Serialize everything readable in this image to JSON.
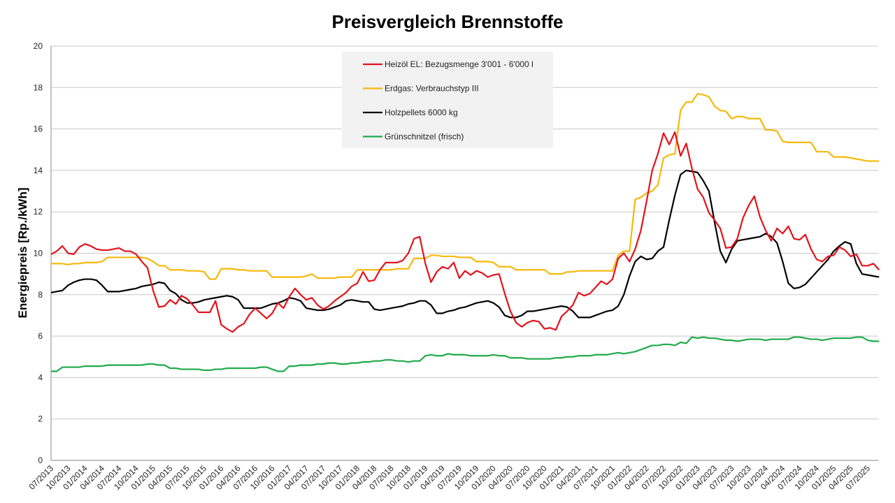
{
  "chart_data": {
    "type": "line",
    "title": "Preisvergleich Brennstoffe",
    "y_label": "Energiepreis [Rp./kWh]",
    "categories": [
      "07/2013",
      null,
      null,
      "10/2013",
      null,
      null,
      "01/2014",
      null,
      null,
      "04/2014",
      null,
      null,
      "07/2014",
      null,
      null,
      "10/2014",
      null,
      null,
      "01/2015",
      null,
      null,
      "04/2015",
      null,
      null,
      "07/2015",
      null,
      null,
      "10/2015",
      null,
      null,
      "01/2016",
      null,
      null,
      "04/2016",
      null,
      null,
      "07/2016",
      null,
      null,
      "10/2016",
      null,
      null,
      "01/2017",
      null,
      null,
      "04/2017",
      null,
      null,
      "07/2017",
      null,
      null,
      "10/2017",
      null,
      null,
      "01/2018",
      null,
      null,
      "04/2018",
      null,
      null,
      "07/2018",
      null,
      null,
      "10/2018",
      null,
      null,
      "01/2019",
      null,
      null,
      "04/2019",
      null,
      null,
      "07/2019",
      null,
      null,
      "10/2019",
      null,
      null,
      "01/2020",
      null,
      null,
      "04/2020",
      null,
      null,
      "07/2020",
      null,
      null,
      "10/2020",
      null,
      null,
      "01/2021",
      null,
      null,
      "04/2021",
      null,
      null,
      "07/2021",
      null,
      null,
      "10/2021",
      null,
      null,
      "01/2022",
      null,
      null,
      "04/2022",
      null,
      null,
      "07/2022",
      null,
      null,
      "10/2022",
      null,
      null,
      "01/2023",
      null,
      null,
      "04/2023",
      null,
      null,
      "07/2023",
      null,
      null,
      "10/2023",
      null,
      null,
      "01/2024",
      null,
      null,
      "04/2024",
      null,
      null,
      "07/2024",
      null,
      null,
      "10/2024",
      null,
      null,
      "01/2025",
      null,
      null,
      "04/2025",
      null,
      null,
      "07/2025",
      null,
      null
    ],
    "series": [
      {
        "name": "Heizöl EL: Bezugsmenge 3'001 - 6'000 l",
        "color": "#e3131b",
        "values": [
          9.95,
          10.1,
          10.35,
          10.0,
          9.95,
          10.3,
          10.45,
          10.35,
          10.2,
          10.15,
          10.15,
          10.2,
          10.25,
          10.1,
          10.1,
          9.95,
          9.6,
          9.3,
          8.2,
          7.4,
          7.45,
          7.75,
          7.55,
          7.95,
          7.8,
          7.5,
          7.15,
          7.15,
          7.15,
          7.7,
          6.55,
          6.35,
          6.2,
          6.45,
          6.6,
          7.05,
          7.35,
          7.1,
          6.85,
          7.1,
          7.6,
          7.35,
          7.9,
          8.3,
          8.0,
          7.75,
          7.85,
          7.5,
          7.3,
          7.45,
          7.7,
          7.9,
          8.1,
          8.4,
          8.55,
          9.1,
          8.65,
          8.7,
          9.2,
          9.55,
          9.55,
          9.55,
          9.65,
          10.0,
          10.7,
          10.8,
          9.5,
          8.6,
          9.1,
          9.35,
          9.25,
          9.55,
          8.8,
          9.15,
          8.95,
          9.15,
          9.05,
          8.85,
          8.95,
          9.0,
          8.05,
          7.2,
          6.65,
          6.45,
          6.65,
          6.75,
          6.7,
          6.35,
          6.4,
          6.3,
          6.95,
          7.2,
          7.5,
          8.1,
          7.95,
          8.05,
          8.35,
          8.65,
          8.5,
          8.75,
          9.75,
          10.0,
          9.6,
          10.2,
          11.1,
          12.5,
          14.0,
          14.8,
          15.8,
          15.25,
          15.85,
          14.7,
          15.3,
          14.1,
          13.1,
          12.7,
          11.95,
          11.6,
          11.2,
          10.25,
          10.3,
          10.7,
          11.7,
          12.3,
          12.75,
          11.75,
          11.1,
          10.6,
          11.2,
          10.95,
          11.3,
          10.7,
          10.65,
          10.9,
          10.2,
          9.7,
          9.6,
          9.85,
          9.9,
          10.3,
          10.15,
          9.85,
          9.95,
          9.4,
          9.4,
          9.5,
          9.2
        ]
      },
      {
        "name": "Erdgas: Verbrauchstyp III",
        "color": "#f5b90a",
        "values": [
          9.5,
          9.5,
          9.5,
          9.45,
          9.5,
          9.5,
          9.55,
          9.55,
          9.55,
          9.6,
          9.8,
          9.8,
          9.8,
          9.8,
          9.8,
          9.8,
          9.8,
          9.75,
          9.6,
          9.4,
          9.4,
          9.2,
          9.2,
          9.2,
          9.15,
          9.15,
          9.15,
          9.1,
          8.75,
          8.75,
          9.25,
          9.25,
          9.25,
          9.2,
          9.2,
          9.15,
          9.15,
          9.15,
          9.15,
          8.85,
          8.85,
          8.85,
          8.85,
          8.85,
          8.85,
          8.9,
          9.0,
          8.8,
          8.8,
          8.8,
          8.8,
          8.85,
          8.85,
          8.85,
          9.2,
          9.2,
          9.2,
          9.2,
          9.2,
          9.2,
          9.2,
          9.25,
          9.25,
          9.25,
          9.75,
          9.75,
          9.75,
          9.9,
          9.9,
          9.85,
          9.85,
          9.85,
          9.8,
          9.8,
          9.8,
          9.6,
          9.6,
          9.6,
          9.55,
          9.35,
          9.35,
          9.35,
          9.2,
          9.2,
          9.2,
          9.2,
          9.2,
          9.2,
          9.0,
          9.0,
          9.0,
          9.1,
          9.1,
          9.15,
          9.15,
          9.15,
          9.15,
          9.15,
          9.15,
          9.15,
          9.9,
          10.1,
          10.1,
          12.6,
          12.7,
          12.9,
          13.0,
          13.3,
          14.6,
          14.75,
          14.8,
          16.9,
          17.3,
          17.3,
          17.7,
          17.65,
          17.55,
          17.1,
          16.9,
          16.85,
          16.5,
          16.6,
          16.6,
          16.5,
          16.5,
          16.5,
          15.95,
          15.95,
          15.9,
          15.4,
          15.35,
          15.35,
          15.35,
          15.35,
          15.35,
          14.9,
          14.9,
          14.9,
          14.65,
          14.65,
          14.65,
          14.6,
          14.55,
          14.5,
          14.45,
          14.45,
          14.45
        ]
      },
      {
        "name": "Holzpellets 6000 kg",
        "color": "#000000",
        "values": [
          8.1,
          8.15,
          8.2,
          8.45,
          8.6,
          8.7,
          8.75,
          8.75,
          8.7,
          8.45,
          8.15,
          8.15,
          8.15,
          8.2,
          8.25,
          8.3,
          8.4,
          8.45,
          8.5,
          8.6,
          8.55,
          8.2,
          8.05,
          7.75,
          7.6,
          7.6,
          7.65,
          7.75,
          7.8,
          7.85,
          7.9,
          7.95,
          7.9,
          7.75,
          7.35,
          7.35,
          7.35,
          7.35,
          7.45,
          7.55,
          7.6,
          7.7,
          7.85,
          7.8,
          7.7,
          7.35,
          7.3,
          7.25,
          7.25,
          7.3,
          7.4,
          7.5,
          7.7,
          7.75,
          7.7,
          7.65,
          7.65,
          7.3,
          7.25,
          7.3,
          7.35,
          7.4,
          7.45,
          7.55,
          7.6,
          7.7,
          7.7,
          7.5,
          7.1,
          7.1,
          7.2,
          7.25,
          7.35,
          7.4,
          7.5,
          7.6,
          7.65,
          7.7,
          7.6,
          7.4,
          7.0,
          6.9,
          6.9,
          7.0,
          7.2,
          7.2,
          7.25,
          7.3,
          7.35,
          7.4,
          7.45,
          7.4,
          7.2,
          6.9,
          6.9,
          6.9,
          7.0,
          7.1,
          7.2,
          7.25,
          7.45,
          8.0,
          8.9,
          9.6,
          9.85,
          9.7,
          9.75,
          10.1,
          10.3,
          11.6,
          12.8,
          13.8,
          14.0,
          13.95,
          13.9,
          13.5,
          13.0,
          11.5,
          10.1,
          9.55,
          10.2,
          10.6,
          10.65,
          10.7,
          10.75,
          10.8,
          10.95,
          10.8,
          10.5,
          9.6,
          8.55,
          8.3,
          8.35,
          8.5,
          8.8,
          9.1,
          9.4,
          9.7,
          10.1,
          10.35,
          10.55,
          10.45,
          9.5,
          9.0,
          8.95,
          8.9,
          8.85
        ]
      },
      {
        "name": "Grünschnitzel (frisch)",
        "color": "#1faa4a",
        "values": [
          4.3,
          4.3,
          4.5,
          4.5,
          4.5,
          4.5,
          4.55,
          4.55,
          4.55,
          4.55,
          4.6,
          4.6,
          4.6,
          4.6,
          4.6,
          4.6,
          4.6,
          4.65,
          4.65,
          4.6,
          4.6,
          4.45,
          4.45,
          4.4,
          4.4,
          4.4,
          4.4,
          4.35,
          4.35,
          4.4,
          4.4,
          4.45,
          4.45,
          4.45,
          4.45,
          4.45,
          4.45,
          4.5,
          4.5,
          4.4,
          4.3,
          4.3,
          4.55,
          4.55,
          4.6,
          4.6,
          4.6,
          4.65,
          4.65,
          4.7,
          4.7,
          4.65,
          4.65,
          4.7,
          4.7,
          4.75,
          4.75,
          4.8,
          4.8,
          4.85,
          4.85,
          4.8,
          4.8,
          4.75,
          4.8,
          4.8,
          5.05,
          5.1,
          5.05,
          5.05,
          5.15,
          5.1,
          5.1,
          5.1,
          5.05,
          5.05,
          5.05,
          5.05,
          5.1,
          5.05,
          5.05,
          4.95,
          4.95,
          4.95,
          4.9,
          4.9,
          4.9,
          4.9,
          4.9,
          4.95,
          4.95,
          5.0,
          5.0,
          5.05,
          5.05,
          5.05,
          5.1,
          5.1,
          5.1,
          5.15,
          5.2,
          5.15,
          5.2,
          5.25,
          5.35,
          5.45,
          5.55,
          5.55,
          5.6,
          5.6,
          5.55,
          5.7,
          5.65,
          5.95,
          5.9,
          5.95,
          5.9,
          5.9,
          5.85,
          5.8,
          5.8,
          5.75,
          5.8,
          5.85,
          5.85,
          5.85,
          5.8,
          5.85,
          5.85,
          5.85,
          5.85,
          5.95,
          5.95,
          5.9,
          5.85,
          5.85,
          5.8,
          5.85,
          5.9,
          5.9,
          5.9,
          5.9,
          5.95,
          5.95,
          5.8,
          5.75,
          5.75
        ]
      }
    ],
    "ylim": [
      0,
      20
    ],
    "yticks": [
      0,
      2,
      4,
      6,
      8,
      10,
      12,
      14,
      16,
      18,
      20
    ],
    "grid": true,
    "legend": "upper center"
  }
}
